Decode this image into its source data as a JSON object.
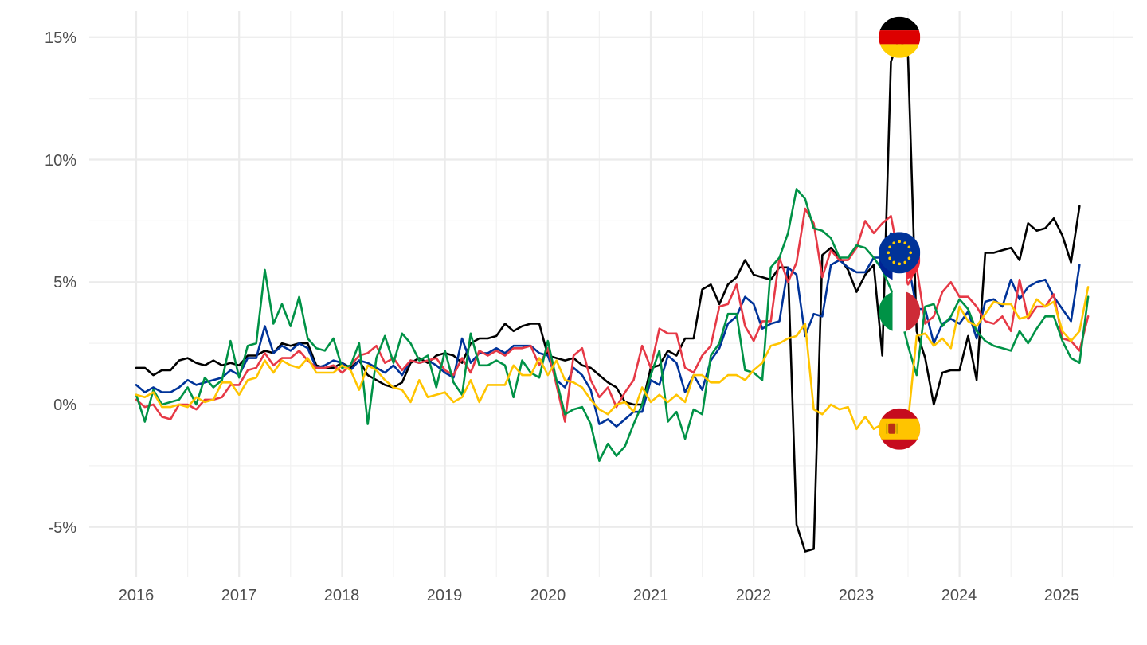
{
  "chart_data": {
    "type": "line",
    "title": "",
    "xlabel": "",
    "ylabel": "",
    "x_start": "2016-01",
    "x_frequency": "monthly",
    "xlim": [
      "2015-08",
      "2025-09"
    ],
    "ylim": [
      -7,
      16
    ],
    "x_ticks": [
      "2016",
      "2017",
      "2018",
      "2019",
      "2020",
      "2021",
      "2022",
      "2023",
      "2024",
      "2025"
    ],
    "y_ticks": [
      -5,
      0,
      5,
      10,
      15
    ],
    "y_tick_labels": [
      "-5%",
      "0%",
      "5%",
      "10%",
      "15%"
    ],
    "grid": true,
    "legend": "flag markers near 2023-06",
    "series": [
      {
        "flag": "germany-flag-icon",
        "color": "#000000",
        "values": [
          1.5,
          1.5,
          1.2,
          1.4,
          1.4,
          1.8,
          1.9,
          1.7,
          1.6,
          1.8,
          1.6,
          1.7,
          1.6,
          2.0,
          2.0,
          2.2,
          2.1,
          2.5,
          2.4,
          2.5,
          2.5,
          1.6,
          1.5,
          1.5,
          1.7,
          1.5,
          1.8,
          1.2,
          1.0,
          0.8,
          0.7,
          0.9,
          1.7,
          1.9,
          1.7,
          2.0,
          2.1,
          2.0,
          1.7,
          2.5,
          2.7,
          2.7,
          2.8,
          3.3,
          3.0,
          3.2,
          3.3,
          3.3,
          2.0,
          1.9,
          1.8,
          1.9,
          1.6,
          1.5,
          1.2,
          0.9,
          0.7,
          0.1,
          0.0,
          0.0,
          1.5,
          1.6,
          2.2,
          2.0,
          2.7,
          2.7,
          4.7,
          4.9,
          4.1,
          4.9,
          5.2,
          5.9,
          5.3,
          5.2,
          5.1,
          5.6,
          5.6,
          -4.9,
          -6.0,
          -5.9,
          6.1,
          6.4,
          6.0,
          5.5,
          4.6,
          5.3,
          5.7,
          2.0,
          14.0,
          15.0,
          14.2,
          3.0,
          1.9,
          0.0,
          1.3,
          1.4,
          1.4,
          2.8,
          1.0,
          6.2,
          6.2,
          6.3,
          6.4,
          5.9,
          7.4,
          7.1,
          7.2,
          7.6,
          6.9,
          5.8,
          8.1
        ]
      },
      {
        "flag": "eu-flag-icon",
        "color": "#003399",
        "values": [
          0.8,
          0.5,
          0.7,
          0.5,
          0.5,
          0.7,
          1.0,
          0.8,
          0.9,
          1.0,
          1.1,
          1.4,
          1.2,
          1.9,
          1.9,
          3.2,
          2.1,
          2.4,
          2.2,
          2.5,
          2.3,
          1.5,
          1.6,
          1.8,
          1.7,
          1.4,
          1.8,
          1.7,
          1.5,
          1.3,
          1.6,
          1.2,
          1.8,
          1.7,
          1.8,
          1.6,
          1.3,
          1.1,
          2.7,
          1.7,
          2.1,
          2.1,
          2.3,
          2.1,
          2.4,
          2.4,
          2.4,
          2.1,
          2.0,
          1.0,
          0.7,
          1.5,
          1.2,
          0.6,
          -0.8,
          -0.6,
          -0.9,
          -0.6,
          -0.3,
          -0.3,
          1.0,
          0.8,
          2.0,
          1.7,
          0.5,
          1.2,
          0.6,
          1.8,
          2.3,
          3.3,
          3.6,
          4.4,
          4.1,
          3.1,
          3.3,
          3.4,
          5.6,
          5.3,
          2.8,
          3.7,
          3.6,
          5.7,
          5.9,
          5.6,
          5.4,
          5.4,
          6.0,
          6.0,
          7.0,
          6.2,
          5.8,
          3.9,
          3.9,
          2.5,
          3.3,
          3.5,
          3.3,
          3.8,
          2.7,
          4.2,
          4.3,
          4.0,
          5.1,
          4.3,
          4.8,
          5.0,
          5.1,
          4.4,
          3.9,
          3.4,
          5.7
        ]
      },
      {
        "flag": "france-flag-icon",
        "color": "#e63946",
        "values": [
          0.2,
          -0.1,
          0.0,
          -0.5,
          -0.6,
          0.0,
          0.0,
          -0.2,
          0.2,
          0.2,
          0.3,
          0.8,
          0.8,
          1.4,
          1.5,
          2.1,
          1.6,
          1.9,
          1.9,
          2.2,
          1.8,
          1.5,
          1.5,
          1.6,
          1.3,
          1.6,
          2.0,
          2.1,
          2.4,
          1.7,
          1.9,
          1.4,
          1.8,
          1.7,
          1.8,
          1.9,
          1.4,
          1.2,
          1.9,
          1.3,
          2.2,
          2.0,
          2.2,
          2.0,
          2.3,
          2.3,
          2.4,
          1.6,
          2.3,
          0.8,
          -0.7,
          2.0,
          2.3,
          1.0,
          0.3,
          0.7,
          -0.1,
          0.5,
          1.0,
          2.4,
          1.5,
          3.1,
          2.9,
          2.9,
          1.5,
          1.3,
          2.0,
          2.4,
          4.0,
          4.1,
          4.9,
          3.2,
          2.6,
          3.4,
          3.4,
          6.0,
          5.0,
          5.8,
          8.0,
          7.4,
          5.2,
          6.3,
          5.9,
          5.9,
          6.4,
          7.5,
          7.0,
          7.4,
          7.7,
          5.9,
          4.9,
          5.6,
          3.3,
          3.6,
          4.6,
          5.0,
          4.4,
          4.4,
          4.0,
          3.4,
          3.3,
          3.6,
          3.0,
          5.1,
          3.5,
          4.0,
          4.0,
          4.5,
          2.7,
          2.6,
          2.2,
          3.6
        ]
      },
      {
        "flag": "italy-flag-icon",
        "color": "#009246",
        "values": [
          0.4,
          -0.7,
          0.6,
          0.0,
          0.1,
          0.2,
          0.7,
          0.0,
          1.1,
          0.7,
          1.0,
          2.6,
          1.1,
          2.4,
          2.5,
          5.5,
          3.3,
          4.1,
          3.2,
          4.4,
          2.7,
          2.3,
          2.2,
          2.7,
          1.5,
          1.6,
          2.5,
          -0.8,
          1.9,
          2.8,
          1.7,
          2.9,
          2.5,
          1.8,
          2.0,
          0.7,
          2.2,
          0.9,
          0.4,
          2.9,
          1.6,
          1.6,
          1.8,
          1.6,
          0.3,
          1.8,
          1.3,
          1.1,
          2.6,
          1.0,
          -0.4,
          -0.2,
          -0.1,
          -0.8,
          -2.3,
          -1.6,
          -2.1,
          -1.7,
          -0.8,
          0.0,
          1.2,
          2.2,
          -0.7,
          -0.3,
          -1.4,
          -0.2,
          -0.4,
          2.0,
          2.5,
          3.7,
          3.7,
          1.4,
          1.3,
          1.0,
          5.6,
          6.0,
          7.0,
          8.8,
          8.4,
          7.2,
          7.1,
          6.8,
          6.0,
          6.0,
          6.5,
          6.4,
          6.0,
          5.5,
          4.7,
          3.8,
          2.4,
          1.2,
          4.0,
          4.1,
          3.2,
          3.6,
          4.3,
          3.9,
          3.0,
          2.6,
          2.4,
          2.3,
          2.2,
          3.0,
          2.5,
          3.1,
          3.6,
          3.6,
          2.6,
          1.9,
          1.7,
          4.4
        ]
      },
      {
        "flag": "spain-flag-icon",
        "color": "#ffc400",
        "values": [
          0.4,
          0.3,
          0.5,
          -0.1,
          -0.1,
          0.0,
          -0.1,
          0.3,
          0.1,
          0.2,
          0.9,
          0.9,
          0.4,
          1.0,
          1.1,
          1.8,
          1.3,
          1.8,
          1.6,
          1.5,
          1.9,
          1.3,
          1.3,
          1.3,
          1.6,
          1.4,
          0.6,
          1.6,
          1.4,
          1.0,
          0.7,
          0.6,
          0.1,
          1.0,
          0.3,
          0.4,
          0.5,
          0.1,
          0.3,
          1.0,
          0.1,
          0.8,
          0.8,
          0.8,
          1.6,
          1.2,
          1.2,
          1.9,
          1.2,
          1.8,
          1.0,
          0.9,
          0.7,
          0.2,
          -0.2,
          -0.4,
          0.0,
          0.1,
          -0.3,
          0.7,
          0.1,
          0.4,
          0.1,
          0.4,
          0.1,
          1.2,
          1.2,
          0.9,
          0.9,
          1.2,
          1.2,
          1.0,
          1.4,
          1.7,
          2.4,
          2.5,
          2.7,
          2.8,
          3.3,
          -0.2,
          -0.4,
          0.0,
          -0.2,
          -0.1,
          -1.0,
          -0.5,
          -1.0,
          -0.8,
          -0.9,
          -1.0,
          -0.7,
          2.8,
          2.9,
          2.4,
          2.7,
          2.3,
          4.0,
          3.4,
          3.2,
          3.7,
          4.2,
          4.1,
          4.1,
          3.5,
          3.6,
          4.3,
          4.0,
          4.2,
          3.0,
          2.6,
          3.0,
          4.8
        ]
      }
    ]
  }
}
